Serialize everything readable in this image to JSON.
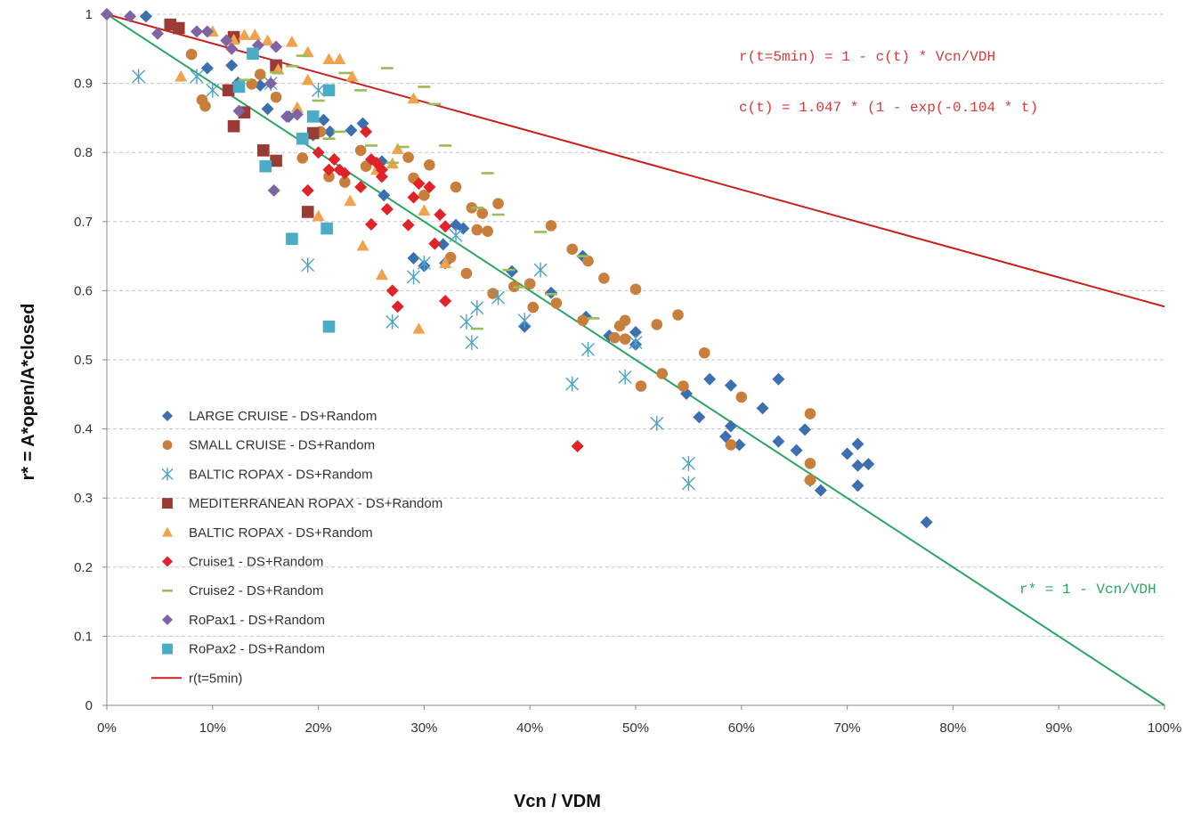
{
  "chart_data": {
    "type": "scatter",
    "xlabel": "Vcn / VDM",
    "ylabel": "r* = A*open/A*closed",
    "xlim": [
      0,
      1
    ],
    "ylim": [
      0,
      1
    ],
    "x_ticks": [
      "0%",
      "10%",
      "20%",
      "30%",
      "40%",
      "50%",
      "60%",
      "70%",
      "80%",
      "90%",
      "100%"
    ],
    "y_ticks": [
      "0",
      "0.1",
      "0.2",
      "0.3",
      "0.4",
      "0.5",
      "0.6",
      "0.7",
      "0.8",
      "0.9",
      "1"
    ],
    "grid": "horizontal dashed",
    "legend_position": "lower-left",
    "annotations": [
      {
        "text": "r(t=5min) = 1 - c(t) * Vcn/VDH",
        "color": "#d63a3a"
      },
      {
        "text": "c(t) = 1.047 * (1 - exp(-0.104 * t)",
        "color": "#d63a3a"
      },
      {
        "text": "r* = 1 - Vcn/VDH",
        "color": "#2aa661"
      }
    ],
    "series": [
      {
        "name": "LARGE CRUISE - DS+Random",
        "marker": "diamond",
        "color": "#3c6fb0",
        "points": [
          [
            0.0,
            1.0
          ],
          [
            0.037,
            0.997
          ],
          [
            0.095,
            0.922
          ],
          [
            0.118,
            0.926
          ],
          [
            0.124,
            0.901
          ],
          [
            0.145,
            0.897
          ],
          [
            0.152,
            0.863
          ],
          [
            0.172,
            0.852
          ],
          [
            0.195,
            0.825
          ],
          [
            0.205,
            0.847
          ],
          [
            0.211,
            0.83
          ],
          [
            0.231,
            0.832
          ],
          [
            0.242,
            0.842
          ],
          [
            0.26,
            0.787
          ],
          [
            0.262,
            0.738
          ],
          [
            0.29,
            0.647
          ],
          [
            0.3,
            0.636
          ],
          [
            0.318,
            0.667
          ],
          [
            0.32,
            0.64
          ],
          [
            0.33,
            0.695
          ],
          [
            0.337,
            0.69
          ],
          [
            0.383,
            0.628
          ],
          [
            0.395,
            0.548
          ],
          [
            0.42,
            0.597
          ],
          [
            0.45,
            0.65
          ],
          [
            0.453,
            0.562
          ],
          [
            0.475,
            0.535
          ],
          [
            0.5,
            0.54
          ],
          [
            0.5,
            0.522
          ],
          [
            0.548,
            0.451
          ],
          [
            0.56,
            0.417
          ],
          [
            0.57,
            0.472
          ],
          [
            0.585,
            0.389
          ],
          [
            0.59,
            0.463
          ],
          [
            0.59,
            0.404
          ],
          [
            0.598,
            0.377
          ],
          [
            0.62,
            0.43
          ],
          [
            0.635,
            0.472
          ],
          [
            0.635,
            0.382
          ],
          [
            0.652,
            0.369
          ],
          [
            0.66,
            0.399
          ],
          [
            0.665,
            0.325
          ],
          [
            0.675,
            0.311
          ],
          [
            0.7,
            0.364
          ],
          [
            0.71,
            0.378
          ],
          [
            0.71,
            0.318
          ],
          [
            0.71,
            0.347
          ],
          [
            0.72,
            0.349
          ],
          [
            0.775,
            0.265
          ]
        ]
      },
      {
        "name": "SMALL CRUISE - DS+Random",
        "marker": "circle",
        "color": "#c87f3c",
        "points": [
          [
            0.08,
            0.942
          ],
          [
            0.09,
            0.876
          ],
          [
            0.093,
            0.867
          ],
          [
            0.137,
            0.899
          ],
          [
            0.145,
            0.913
          ],
          [
            0.16,
            0.88
          ],
          [
            0.185,
            0.792
          ],
          [
            0.202,
            0.83
          ],
          [
            0.21,
            0.765
          ],
          [
            0.225,
            0.757
          ],
          [
            0.24,
            0.803
          ],
          [
            0.245,
            0.78
          ],
          [
            0.285,
            0.793
          ],
          [
            0.29,
            0.763
          ],
          [
            0.3,
            0.738
          ],
          [
            0.305,
            0.782
          ],
          [
            0.325,
            0.648
          ],
          [
            0.33,
            0.75
          ],
          [
            0.34,
            0.625
          ],
          [
            0.345,
            0.72
          ],
          [
            0.35,
            0.688
          ],
          [
            0.355,
            0.712
          ],
          [
            0.36,
            0.686
          ],
          [
            0.365,
            0.596
          ],
          [
            0.37,
            0.726
          ],
          [
            0.385,
            0.606
          ],
          [
            0.4,
            0.61
          ],
          [
            0.403,
            0.576
          ],
          [
            0.42,
            0.694
          ],
          [
            0.425,
            0.582
          ],
          [
            0.44,
            0.66
          ],
          [
            0.45,
            0.557
          ],
          [
            0.455,
            0.643
          ],
          [
            0.47,
            0.618
          ],
          [
            0.48,
            0.532
          ],
          [
            0.485,
            0.549
          ],
          [
            0.49,
            0.557
          ],
          [
            0.49,
            0.53
          ],
          [
            0.5,
            0.602
          ],
          [
            0.505,
            0.462
          ],
          [
            0.52,
            0.551
          ],
          [
            0.525,
            0.48
          ],
          [
            0.54,
            0.565
          ],
          [
            0.545,
            0.462
          ],
          [
            0.565,
            0.51
          ],
          [
            0.59,
            0.377
          ],
          [
            0.6,
            0.446
          ],
          [
            0.665,
            0.35
          ],
          [
            0.665,
            0.326
          ],
          [
            0.665,
            0.422
          ]
        ]
      },
      {
        "name": "BALTIC ROPAX - DS+Random",
        "marker": "asterisk",
        "color": "#4aa3c8",
        "points": [
          [
            0.03,
            0.91
          ],
          [
            0.085,
            0.91
          ],
          [
            0.1,
            0.89
          ],
          [
            0.155,
            0.9
          ],
          [
            0.19,
            0.637
          ],
          [
            0.2,
            0.89
          ],
          [
            0.27,
            0.555
          ],
          [
            0.29,
            0.62
          ],
          [
            0.3,
            0.64
          ],
          [
            0.33,
            0.68
          ],
          [
            0.34,
            0.555
          ],
          [
            0.345,
            0.525
          ],
          [
            0.35,
            0.575
          ],
          [
            0.37,
            0.59
          ],
          [
            0.395,
            0.557
          ],
          [
            0.41,
            0.63
          ],
          [
            0.44,
            0.465
          ],
          [
            0.455,
            0.515
          ],
          [
            0.49,
            0.475
          ],
          [
            0.5,
            0.525
          ],
          [
            0.52,
            0.408
          ],
          [
            0.55,
            0.35
          ],
          [
            0.55,
            0.321
          ]
        ]
      },
      {
        "name": "MEDITERRANEAN ROPAX - DS+Random",
        "marker": "square",
        "color": "#9b3b35",
        "points": [
          [
            0.06,
            0.985
          ],
          [
            0.068,
            0.98
          ],
          [
            0.115,
            0.89
          ],
          [
            0.12,
            0.838
          ],
          [
            0.12,
            0.967
          ],
          [
            0.13,
            0.858
          ],
          [
            0.148,
            0.803
          ],
          [
            0.16,
            0.788
          ],
          [
            0.16,
            0.926
          ],
          [
            0.19,
            0.714
          ],
          [
            0.195,
            0.828
          ]
        ]
      },
      {
        "name": "BALTIC ROPAX - DS+Random",
        "marker": "triangle",
        "color": "#f0a24c",
        "points": [
          [
            0.07,
            0.91
          ],
          [
            0.1,
            0.975
          ],
          [
            0.12,
            0.963
          ],
          [
            0.13,
            0.97
          ],
          [
            0.14,
            0.97
          ],
          [
            0.152,
            0.962
          ],
          [
            0.162,
            0.92
          ],
          [
            0.175,
            0.96
          ],
          [
            0.18,
            0.865
          ],
          [
            0.19,
            0.945
          ],
          [
            0.19,
            0.905
          ],
          [
            0.2,
            0.708
          ],
          [
            0.21,
            0.935
          ],
          [
            0.22,
            0.935
          ],
          [
            0.23,
            0.73
          ],
          [
            0.232,
            0.91
          ],
          [
            0.242,
            0.665
          ],
          [
            0.255,
            0.775
          ],
          [
            0.26,
            0.623
          ],
          [
            0.27,
            0.784
          ],
          [
            0.275,
            0.805
          ],
          [
            0.29,
            0.878
          ],
          [
            0.295,
            0.545
          ],
          [
            0.3,
            0.716
          ],
          [
            0.32,
            0.64
          ]
        ]
      },
      {
        "name": "Cruise1 - DS+Random",
        "marker": "diamond",
        "color": "#e0232a",
        "points": [
          [
            0.19,
            0.745
          ],
          [
            0.2,
            0.8
          ],
          [
            0.21,
            0.775
          ],
          [
            0.215,
            0.79
          ],
          [
            0.22,
            0.775
          ],
          [
            0.225,
            0.77
          ],
          [
            0.24,
            0.75
          ],
          [
            0.245,
            0.83
          ],
          [
            0.25,
            0.79
          ],
          [
            0.255,
            0.785
          ],
          [
            0.26,
            0.775
          ],
          [
            0.26,
            0.765
          ],
          [
            0.265,
            0.718
          ],
          [
            0.25,
            0.696
          ],
          [
            0.27,
            0.6
          ],
          [
            0.275,
            0.577
          ],
          [
            0.285,
            0.695
          ],
          [
            0.29,
            0.735
          ],
          [
            0.295,
            0.755
          ],
          [
            0.305,
            0.75
          ],
          [
            0.31,
            0.668
          ],
          [
            0.315,
            0.71
          ],
          [
            0.32,
            0.693
          ],
          [
            0.32,
            0.585
          ],
          [
            0.445,
            0.375
          ]
        ]
      },
      {
        "name": "Cruise2 - DS+Random",
        "marker": "dash",
        "color": "#9bbb59",
        "points": [
          [
            0.13,
            0.905
          ],
          [
            0.16,
            0.916
          ],
          [
            0.175,
            0.925
          ],
          [
            0.185,
            0.94
          ],
          [
            0.2,
            0.875
          ],
          [
            0.21,
            0.82
          ],
          [
            0.22,
            0.83
          ],
          [
            0.225,
            0.915
          ],
          [
            0.24,
            0.89
          ],
          [
            0.25,
            0.81
          ],
          [
            0.265,
            0.922
          ],
          [
            0.27,
            0.785
          ],
          [
            0.28,
            0.808
          ],
          [
            0.3,
            0.895
          ],
          [
            0.31,
            0.87
          ],
          [
            0.32,
            0.81
          ],
          [
            0.35,
            0.72
          ],
          [
            0.36,
            0.77
          ],
          [
            0.37,
            0.71
          ],
          [
            0.38,
            0.63
          ],
          [
            0.39,
            0.605
          ],
          [
            0.41,
            0.685
          ],
          [
            0.42,
            0.595
          ],
          [
            0.45,
            0.65
          ],
          [
            0.46,
            0.56
          ],
          [
            0.35,
            0.545
          ]
        ]
      },
      {
        "name": "RoPax1 - DS+Random",
        "marker": "diamond",
        "color": "#8064a2",
        "points": [
          [
            0.0,
            1.0
          ],
          [
            0.022,
            0.997
          ],
          [
            0.048,
            0.972
          ],
          [
            0.085,
            0.975
          ],
          [
            0.095,
            0.975
          ],
          [
            0.113,
            0.962
          ],
          [
            0.118,
            0.95
          ],
          [
            0.125,
            0.86
          ],
          [
            0.143,
            0.955
          ],
          [
            0.155,
            0.9
          ],
          [
            0.16,
            0.953
          ],
          [
            0.158,
            0.745
          ],
          [
            0.17,
            0.852
          ],
          [
            0.18,
            0.855
          ]
        ]
      },
      {
        "name": "RoPax2 - DS+Random",
        "marker": "square",
        "color": "#4bacc6",
        "points": [
          [
            0.125,
            0.895
          ],
          [
            0.138,
            0.943
          ],
          [
            0.15,
            0.78
          ],
          [
            0.175,
            0.675
          ],
          [
            0.185,
            0.82
          ],
          [
            0.195,
            0.852
          ],
          [
            0.208,
            0.69
          ],
          [
            0.21,
            0.89
          ],
          [
            0.21,
            0.548
          ]
        ]
      }
    ],
    "lines": [
      {
        "name": "r(t=5min)",
        "color": "#c8201f",
        "x": [
          0,
          1
        ],
        "y": [
          1,
          0.577
        ]
      },
      {
        "name": "",
        "color": "#2aa661",
        "x": [
          0,
          1
        ],
        "y": [
          1,
          0.0
        ]
      }
    ]
  }
}
